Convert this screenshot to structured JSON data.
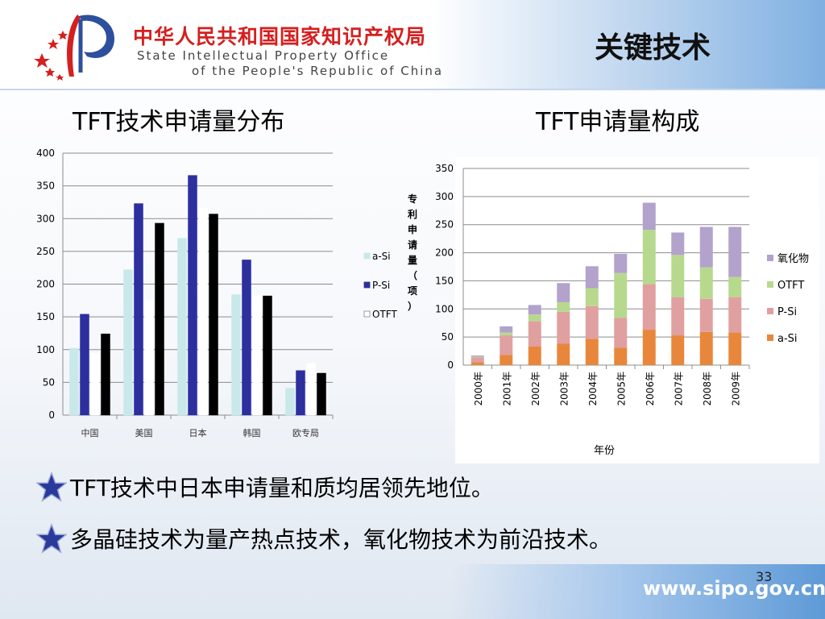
{
  "header": {
    "org_cn": "中华人民共和国国家知识产权局",
    "org_en_line1": "State Intellectual Property Office",
    "org_en_line2": "of the People's Republic of China",
    "section_title": "关键技术"
  },
  "left_title": "TFT技术申请量分布",
  "right_title": "TFT申请量构成",
  "colors": {
    "aSi_left": "#c9e8ea",
    "PSi_left": "#2d2f9e",
    "OTFT_left": "#ffffff",
    "black_series": "#000000",
    "aSi_right": "#e8873c",
    "PSi_right": "#e0a0a0",
    "OTFT_right": "#b7d98e",
    "oxide_right": "#b3a2cc",
    "org_red": "#d4201f"
  },
  "chart_data": [
    {
      "type": "bar",
      "categories": [
        "中国",
        "美国",
        "日本",
        "韩国",
        "欧专局"
      ],
      "series": [
        {
          "name": "a-Si",
          "values": [
            102,
            222,
            270,
            184,
            41
          ]
        },
        {
          "name": "P-Si",
          "values": [
            154,
            323,
            366,
            237,
            68
          ]
        },
        {
          "name": "OTFT",
          "values": [
            95,
            175,
            316,
            182,
            79
          ]
        },
        {
          "name": "",
          "values": [
            124,
            293,
            307,
            182,
            64
          ]
        }
      ],
      "ylim": [
        0,
        400
      ],
      "yticks": [
        "0",
        "50",
        "100",
        "150",
        "200",
        "250",
        "300",
        "350",
        "400"
      ],
      "grid": true,
      "legend": "right"
    },
    {
      "type": "bar",
      "stacked": true,
      "categories": [
        "2000年",
        "2001年",
        "2002年",
        "2003年",
        "2004年",
        "2005年",
        "2006年",
        "2007年",
        "2008年",
        "2009年"
      ],
      "series": [
        {
          "name": "a-Si",
          "values": [
            5,
            18,
            33,
            38,
            47,
            31,
            63,
            53,
            59,
            58
          ]
        },
        {
          "name": "P-Si",
          "values": [
            9,
            35,
            45,
            57,
            58,
            53,
            81,
            68,
            59,
            63
          ]
        },
        {
          "name": "OTFT",
          "values": [
            1,
            5,
            12,
            17,
            32,
            80,
            97,
            75,
            56,
            36
          ]
        },
        {
          "name": "氧化物",
          "values": [
            2,
            11,
            17,
            34,
            39,
            34,
            48,
            40,
            72,
            89
          ]
        }
      ],
      "ylim": [
        0,
        350
      ],
      "yticks": [
        "0",
        "50",
        "100",
        "150",
        "200",
        "250",
        "300",
        "350"
      ],
      "ylabel": "专利申请量（项）",
      "xlabel": "年份",
      "grid": true,
      "legend": "right"
    }
  ],
  "bullets": [
    "TFT技术中日本申请量和质均居领先地位。",
    "多晶硅技术为量产热点技术，氧化物技术为前沿技术。"
  ],
  "page_number": "33",
  "url": "www.sipo.gov.cn"
}
